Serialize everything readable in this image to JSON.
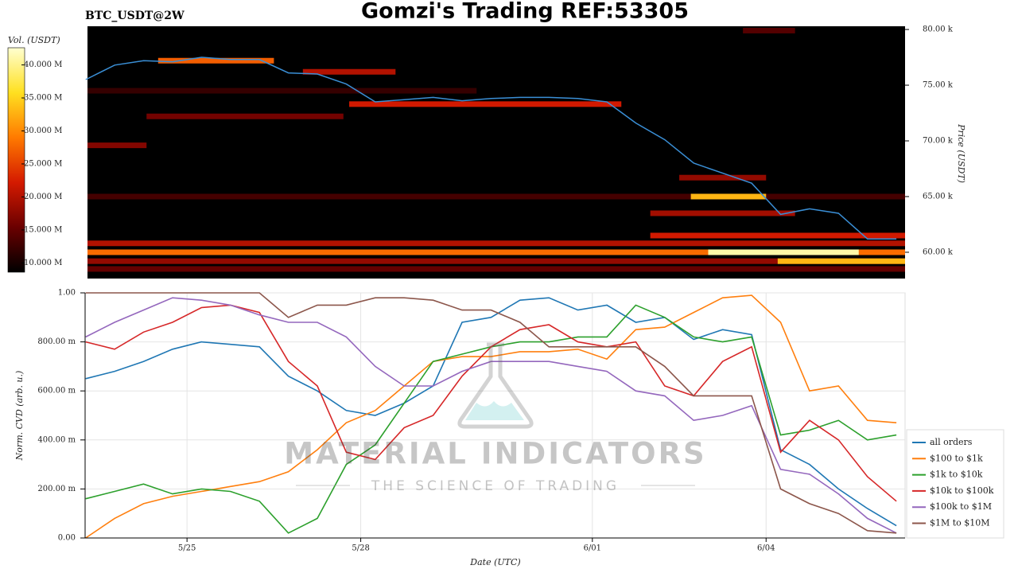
{
  "chart_data": [
    {
      "type": "heatmap",
      "title": "Gomzi's Trading REF:53305",
      "subtitle": "BTC_USDT@2W",
      "ylabel": "Price (USDT)",
      "colorbar_label": "Vol. (USDT)",
      "colormap": [
        "#000000",
        "#6a0000",
        "#d41a00",
        "#ff7a00",
        "#ffe020",
        "#ffffd0"
      ],
      "xlim": [
        23.28,
        37.4
      ],
      "ylim": [
        57640,
        80290
      ],
      "yticks": [
        {
          "value": 60000,
          "label": "60.00 k"
        },
        {
          "value": 65000,
          "label": "65.00 k"
        },
        {
          "value": 70000,
          "label": "70.00 k"
        },
        {
          "value": 75000,
          "label": "75.00 k"
        },
        {
          "value": 80000,
          "label": "80.00 k"
        }
      ],
      "clim": [
        8600000,
        42600000
      ],
      "cticks": [
        {
          "value": 10000000,
          "label": "10.000 M"
        },
        {
          "value": 15000000,
          "label": "15.000 M"
        },
        {
          "value": 20000000,
          "label": "20.000 M"
        },
        {
          "value": 25000000,
          "label": "25.000 M"
        },
        {
          "value": 30000000,
          "label": "30.000 M"
        },
        {
          "value": 35000000,
          "label": "35.000 M"
        },
        {
          "value": 40000000,
          "label": "40.000 M"
        }
      ],
      "bands": [
        {
          "price": 58500,
          "x0": 23.28,
          "x1": 37.4,
          "volume": 15000000
        },
        {
          "price": 59200,
          "x0": 23.28,
          "x1": 37.4,
          "volume": 18000000
        },
        {
          "price": 60000,
          "x0": 23.28,
          "x1": 37.4,
          "volume": 28000000
        },
        {
          "price": 60800,
          "x0": 23.28,
          "x1": 37.4,
          "volume": 20000000
        },
        {
          "price": 60000,
          "x0": 34.0,
          "x1": 36.6,
          "volume": 41000000
        },
        {
          "price": 59200,
          "x0": 35.2,
          "x1": 37.4,
          "volume": 33000000
        },
        {
          "price": 61500,
          "x0": 33.0,
          "x1": 37.4,
          "volume": 22000000
        },
        {
          "price": 63500,
          "x0": 33.0,
          "x1": 35.5,
          "volume": 19000000
        },
        {
          "price": 65000,
          "x0": 23.28,
          "x1": 37.4,
          "volume": 13000000
        },
        {
          "price": 65000,
          "x0": 33.7,
          "x1": 35.0,
          "volume": 33000000
        },
        {
          "price": 66700,
          "x0": 33.5,
          "x1": 35.0,
          "volume": 18000000
        },
        {
          "price": 69600,
          "x0": 23.28,
          "x1": 24.3,
          "volume": 17000000
        },
        {
          "price": 72200,
          "x0": 24.3,
          "x1": 27.7,
          "volume": 16000000
        },
        {
          "price": 73300,
          "x0": 27.8,
          "x1": 32.5,
          "volume": 22000000
        },
        {
          "price": 74500,
          "x0": 23.28,
          "x1": 30.0,
          "volume": 12000000
        },
        {
          "price": 76200,
          "x0": 27.0,
          "x1": 28.6,
          "volume": 20000000
        },
        {
          "price": 77200,
          "x0": 24.5,
          "x1": 26.5,
          "volume": 27000000
        },
        {
          "price": 79900,
          "x0": 34.6,
          "x1": 35.5,
          "volume": 14000000
        }
      ],
      "price_color": "#3a8fd6",
      "x": [
        23.25,
        23.75,
        24.25,
        24.75,
        25.25,
        25.75,
        26.25,
        26.75,
        27.25,
        27.75,
        28.25,
        28.75,
        29.25,
        29.75,
        30.25,
        30.75,
        31.25,
        31.75,
        32.25,
        32.75,
        33.25,
        33.75,
        34.25,
        34.75,
        35.25,
        35.75,
        36.25,
        36.75,
        37.25
      ],
      "price": [
        75500,
        76800,
        77200,
        77100,
        77500,
        77300,
        77300,
        76100,
        76000,
        75100,
        73500,
        73700,
        73900,
        73600,
        73800,
        73900,
        73900,
        73800,
        73500,
        71600,
        70100,
        68000,
        67100,
        66200,
        63400,
        63900,
        63500,
        61200,
        61200
      ]
    },
    {
      "type": "line",
      "xlabel": "Date (UTC)",
      "ylabel": "Norm. CVD (arb. u.)",
      "watermark": "MATERIAL INDICATORS",
      "watermark_subtitle": "THE SCIENCE OF TRADING",
      "legend": "right",
      "grid": true,
      "xlim": [
        23.24,
        37.4
      ],
      "xticks": [
        {
          "value": 25,
          "label": "5/25"
        },
        {
          "value": 28,
          "label": "5/28"
        },
        {
          "value": 32,
          "label": "6/01"
        },
        {
          "value": 35,
          "label": "6/04"
        }
      ],
      "ylim": [
        0,
        1
      ],
      "yticks": [
        {
          "value": 0,
          "label": "0.00"
        },
        {
          "value": 0.2,
          "label": "200.00 m"
        },
        {
          "value": 0.4,
          "label": "400.00 m"
        },
        {
          "value": 0.6,
          "label": "600.00 m"
        },
        {
          "value": 0.8,
          "label": "800.00 m"
        },
        {
          "value": 1,
          "label": "1.00"
        }
      ],
      "x": [
        23.25,
        23.75,
        24.25,
        24.75,
        25.25,
        25.75,
        26.25,
        26.75,
        27.25,
        27.75,
        28.25,
        28.75,
        29.25,
        29.75,
        30.25,
        30.75,
        31.25,
        31.75,
        32.25,
        32.75,
        33.25,
        33.75,
        34.25,
        34.75,
        35.25,
        35.75,
        36.25,
        36.75,
        37.25
      ],
      "series": [
        {
          "name": "all orders",
          "color": "#1f77b4",
          "values": [
            0.65,
            0.68,
            0.72,
            0.77,
            0.8,
            0.79,
            0.78,
            0.66,
            0.6,
            0.52,
            0.5,
            0.55,
            0.62,
            0.88,
            0.9,
            0.97,
            0.98,
            0.93,
            0.95,
            0.88,
            0.9,
            0.81,
            0.85,
            0.83,
            0.36,
            0.3,
            0.2,
            0.12,
            0.05
          ]
        },
        {
          "name": "$100 to $1k",
          "color": "#ff7f0e",
          "values": [
            0.0,
            0.08,
            0.14,
            0.17,
            0.19,
            0.21,
            0.23,
            0.27,
            0.36,
            0.47,
            0.52,
            0.62,
            0.72,
            0.74,
            0.74,
            0.76,
            0.76,
            0.77,
            0.73,
            0.85,
            0.86,
            0.92,
            0.98,
            0.99,
            0.88,
            0.6,
            0.62,
            0.48,
            0.47
          ]
        },
        {
          "name": "$1k to $10k",
          "color": "#2ca02c",
          "values": [
            0.16,
            0.19,
            0.22,
            0.18,
            0.2,
            0.19,
            0.15,
            0.02,
            0.08,
            0.3,
            0.38,
            0.55,
            0.72,
            0.75,
            0.78,
            0.8,
            0.8,
            0.82,
            0.82,
            0.95,
            0.9,
            0.82,
            0.8,
            0.82,
            0.42,
            0.44,
            0.48,
            0.4,
            0.42
          ]
        },
        {
          "name": "$10k to $100k",
          "color": "#d62728",
          "values": [
            0.8,
            0.77,
            0.84,
            0.88,
            0.94,
            0.95,
            0.92,
            0.72,
            0.62,
            0.35,
            0.32,
            0.45,
            0.5,
            0.66,
            0.78,
            0.85,
            0.87,
            0.8,
            0.78,
            0.8,
            0.62,
            0.58,
            0.72,
            0.78,
            0.35,
            0.48,
            0.4,
            0.25,
            0.15
          ]
        },
        {
          "name": "$100k to $1M",
          "color": "#9467bd",
          "values": [
            0.82,
            0.88,
            0.93,
            0.98,
            0.97,
            0.95,
            0.91,
            0.88,
            0.88,
            0.82,
            0.7,
            0.62,
            0.62,
            0.68,
            0.72,
            0.72,
            0.72,
            0.7,
            0.68,
            0.6,
            0.58,
            0.48,
            0.5,
            0.54,
            0.28,
            0.26,
            0.18,
            0.08,
            0.02
          ]
        },
        {
          "name": "$1M to $10M",
          "color": "#8c564b",
          "values": [
            1.0,
            1.0,
            1.0,
            1.0,
            1.0,
            1.0,
            1.0,
            0.9,
            0.95,
            0.95,
            0.98,
            0.98,
            0.97,
            0.93,
            0.93,
            0.88,
            0.78,
            0.78,
            0.78,
            0.78,
            0.7,
            0.58,
            0.58,
            0.58,
            0.2,
            0.14,
            0.1,
            0.03,
            0.02
          ]
        }
      ]
    }
  ]
}
